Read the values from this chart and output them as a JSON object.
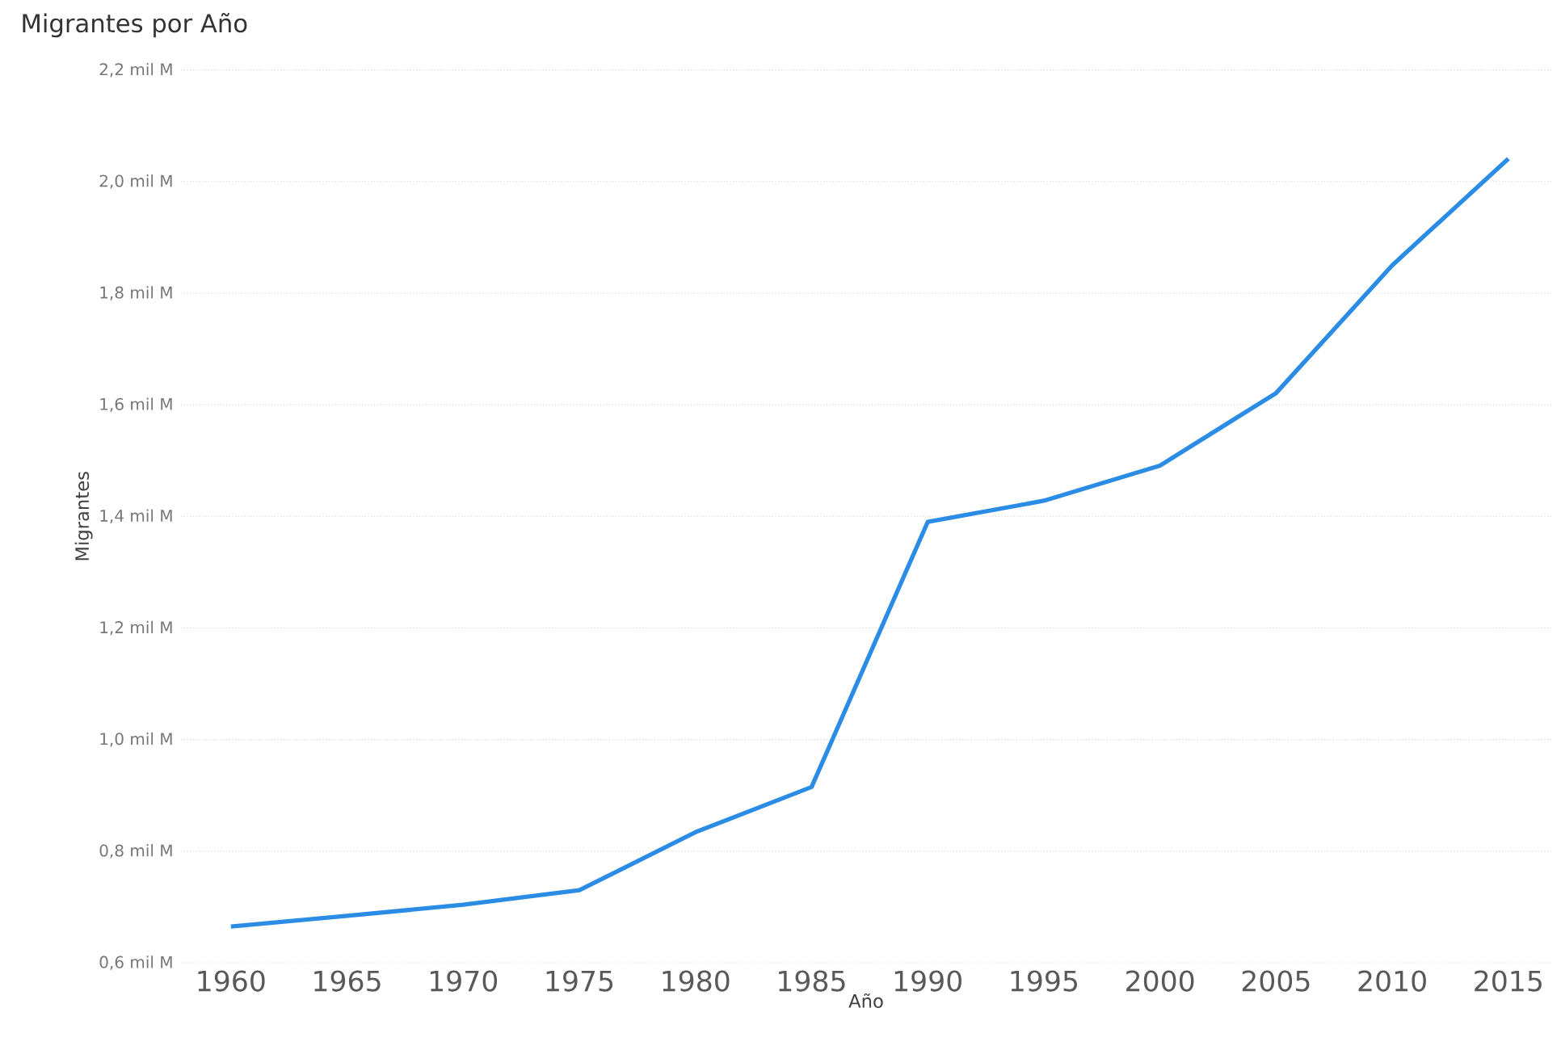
{
  "chart_data": {
    "type": "line",
    "title": "Migrantes por Año",
    "xlabel": "Año",
    "ylabel": "Migrantes",
    "categories": [
      "1960",
      "1965",
      "1970",
      "1975",
      "1980",
      "1985",
      "1990",
      "1995",
      "2000",
      "2005",
      "2010",
      "2015"
    ],
    "series": [
      {
        "color": "#2b8ce6",
        "values": [
          0.665,
          0.684,
          0.704,
          0.73,
          0.834,
          0.915,
          1.39,
          1.428,
          1.491,
          1.621,
          1.85,
          2.041
        ]
      }
    ],
    "ylim": [
      0.6,
      2.2
    ],
    "yticks": [
      {
        "value": 0.6,
        "label": "0,6 mil M"
      },
      {
        "value": 0.8,
        "label": "0,8 mil M"
      },
      {
        "value": 1.0,
        "label": "1,0 mil M"
      },
      {
        "value": 1.2,
        "label": "1,2 mil M"
      },
      {
        "value": 1.4,
        "label": "1,4 mil M"
      },
      {
        "value": 1.6,
        "label": "1,6 mil M"
      },
      {
        "value": 1.8,
        "label": "1,8 mil M"
      },
      {
        "value": 2.0,
        "label": "2,0 mil M"
      },
      {
        "value": 2.2,
        "label": "2,2 mil M"
      }
    ],
    "grid": "y",
    "marker": "none",
    "line_style": "solid"
  }
}
